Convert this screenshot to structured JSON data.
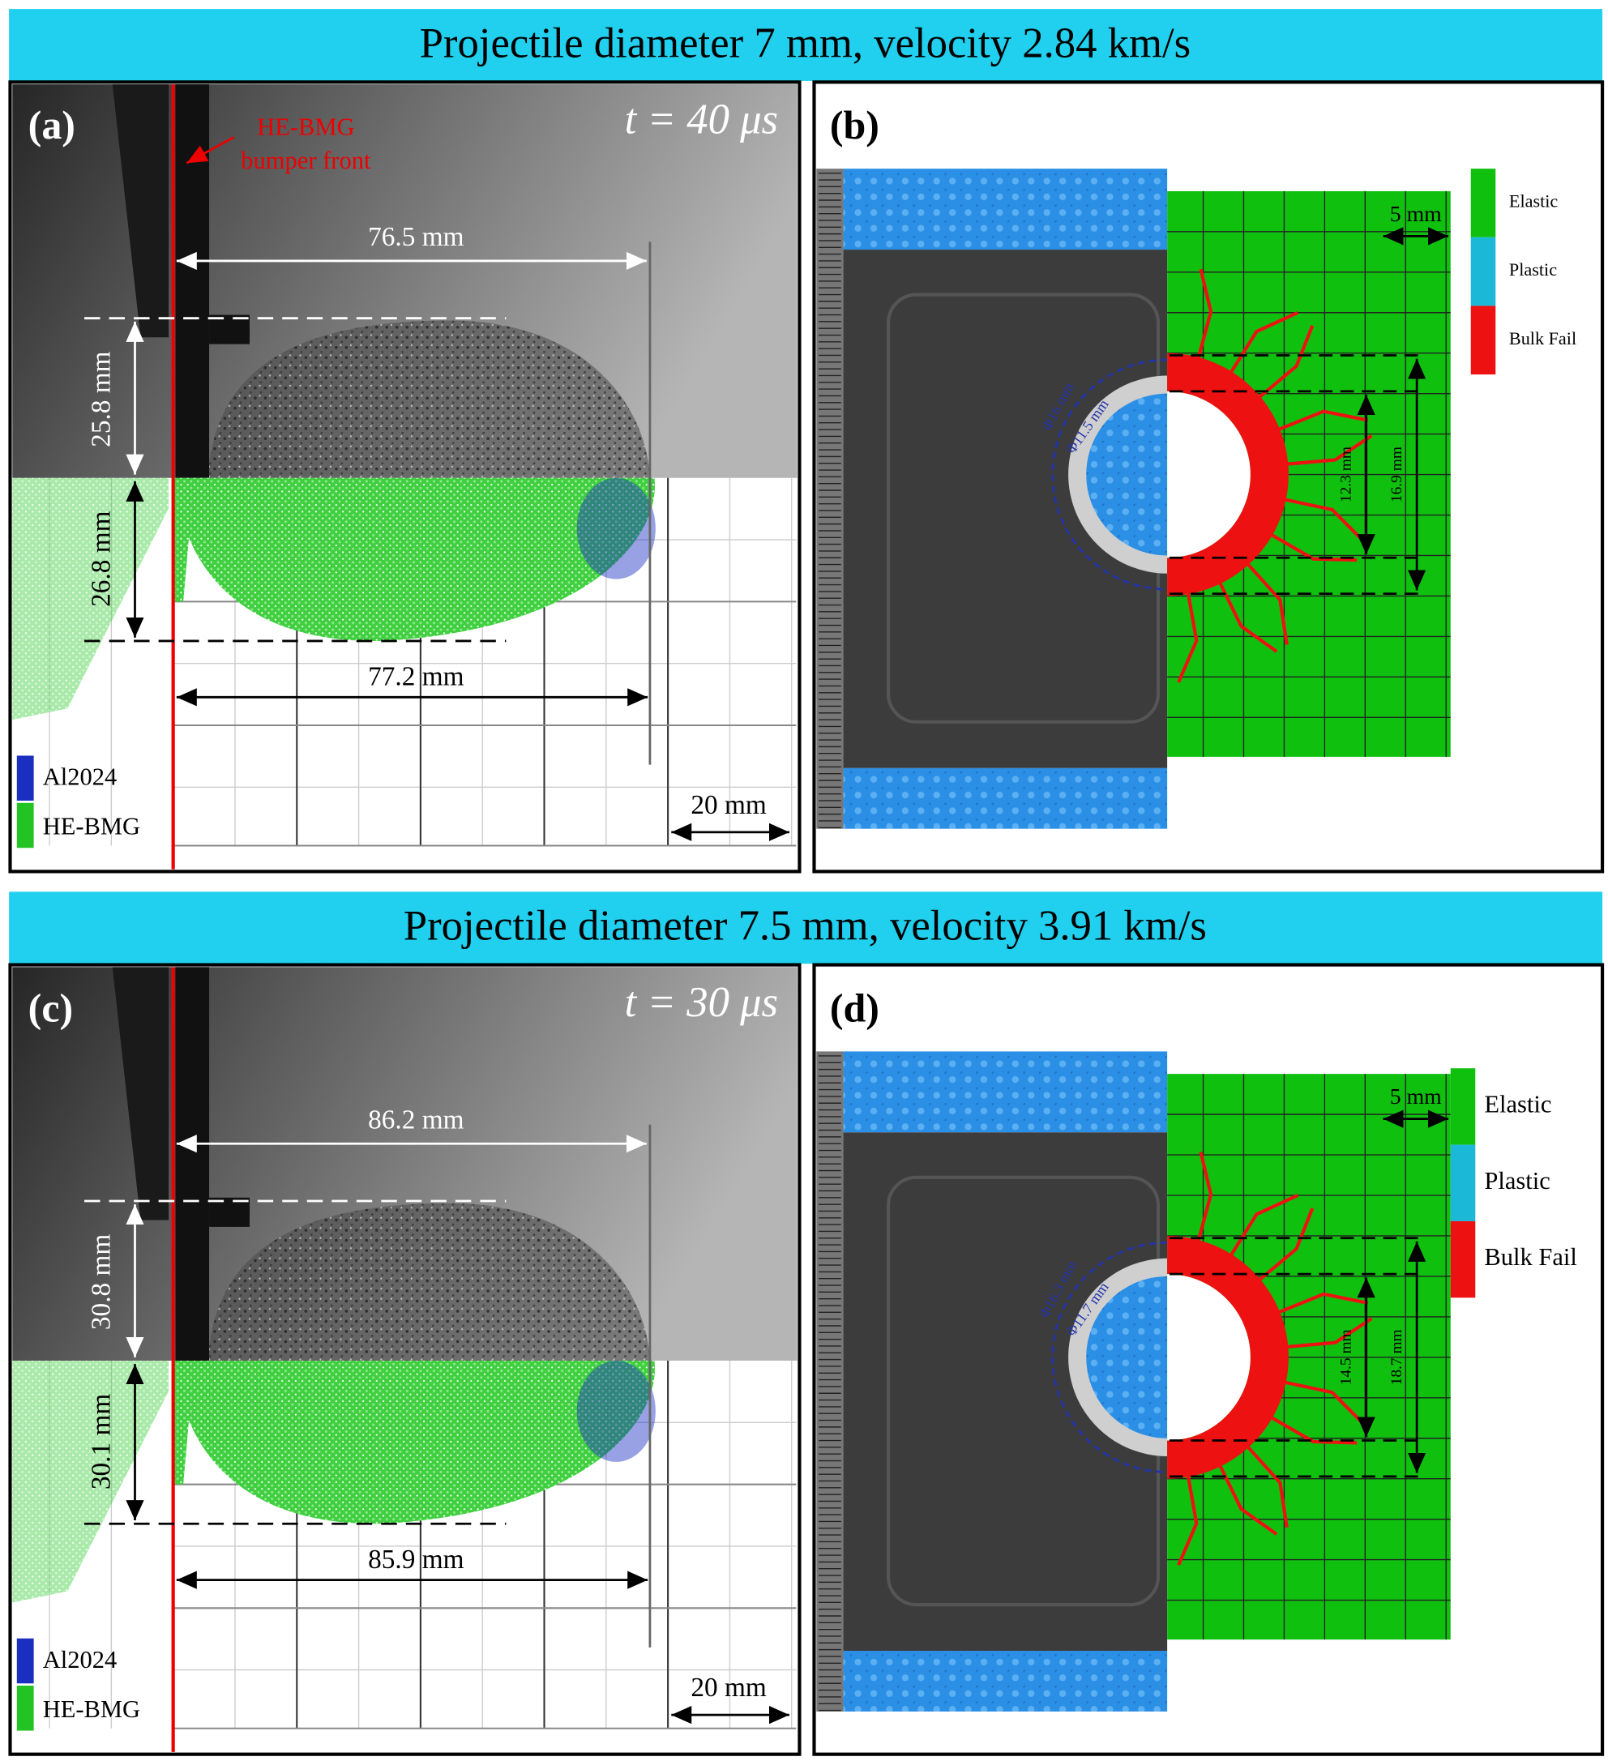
{
  "rows": [
    {
      "title": "Projectile diameter 7 mm, velocity 2.84 km/s",
      "left_panel": {
        "label": "(a)",
        "time": "t = 40 μs",
        "bumper_note": [
          "HE-BMG",
          "bumper front"
        ],
        "plume_length_photo": "76.5 mm",
        "plume_height_photo": "25.8 mm",
        "plume_height_sim": "26.8 mm",
        "plume_length_sim": "77.2 mm",
        "legend": [
          "Al2024",
          "HE-BMG"
        ],
        "scale": "20 mm"
      },
      "right_panel": {
        "label": "(b)",
        "legend": [
          "Elastic",
          "Plastic",
          "Bulk Fail"
        ],
        "scale": "5 mm",
        "outer_diameter": "Φ16 mm",
        "inner_diameter": "Φ11.5 mm",
        "inner_damage": "12.3 mm",
        "outer_damage": "16.9 mm"
      }
    },
    {
      "title": "Projectile diameter 7.5 mm, velocity 3.91 km/s",
      "left_panel": {
        "label": "(c)",
        "time": "t = 30 μs",
        "plume_length_photo": "86.2 mm",
        "plume_height_photo": "30.8 mm",
        "plume_height_sim": "30.1 mm",
        "plume_length_sim": "85.9 mm",
        "legend": [
          "Al2024",
          "HE-BMG"
        ],
        "scale": "20 mm"
      },
      "right_panel": {
        "label": "(d)",
        "legend": [
          "Elastic",
          "Plastic",
          "Bulk Fail"
        ],
        "scale": "5 mm",
        "outer_diameter": "Φ16.3 mm",
        "inner_diameter": "Φ11.7 mm",
        "inner_damage": "14.5 mm",
        "outer_damage": "18.7 mm"
      }
    }
  ]
}
